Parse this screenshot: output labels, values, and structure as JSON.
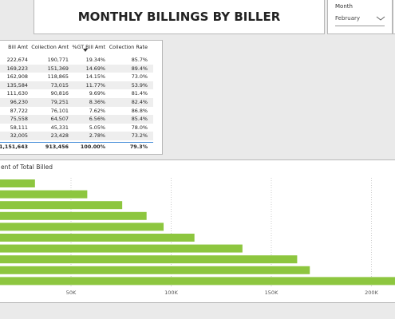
{
  "header": {
    "title": "MONTHLY BILLINGS BY BILLER"
  },
  "slicer": {
    "label": "Month",
    "value": "February"
  },
  "table": {
    "columns": [
      "Bill Amt",
      "Collection Amt",
      "%GT Bill Amt",
      "Collection Rate"
    ],
    "rows": [
      [
        "222,674",
        "190,771",
        "19.34%",
        "85.7%"
      ],
      [
        "169,223",
        "151,369",
        "14.69%",
        "89.4%"
      ],
      [
        "162,908",
        "118,865",
        "14.15%",
        "73.0%"
      ],
      [
        "135,584",
        "73,015",
        "11.77%",
        "53.9%"
      ],
      [
        "111,630",
        "90,816",
        "9.69%",
        "81.4%"
      ],
      [
        "96,230",
        "79,251",
        "8.36%",
        "82.4%"
      ],
      [
        "87,722",
        "76,101",
        "7.62%",
        "86.8%"
      ],
      [
        "75,558",
        "64,507",
        "6.56%",
        "85.4%"
      ],
      [
        "58,111",
        "45,331",
        "5.05%",
        "78.0%"
      ],
      [
        "32,005",
        "23,428",
        "2.78%",
        "73.2%"
      ]
    ],
    "total": [
      "1,151,643",
      "913,456",
      "100.00%",
      "79.3%"
    ]
  },
  "chart_data": {
    "type": "hbar",
    "title": "ent of Total Billed",
    "categories": [
      null,
      null,
      null,
      null,
      null,
      null,
      null,
      null,
      null,
      null
    ],
    "values": [
      32005,
      58111,
      75558,
      87722,
      96230,
      111630,
      135584,
      162908,
      169223,
      222674
    ],
    "color": "#8dc63f",
    "xlim": [
      0,
      220000
    ],
    "xticks": [
      {
        "value": 50000,
        "label": "50K"
      },
      {
        "value": 100000,
        "label": "100K"
      },
      {
        "value": 150000,
        "label": "150K"
      },
      {
        "value": 200000,
        "label": "200K"
      }
    ],
    "grid": true
  }
}
